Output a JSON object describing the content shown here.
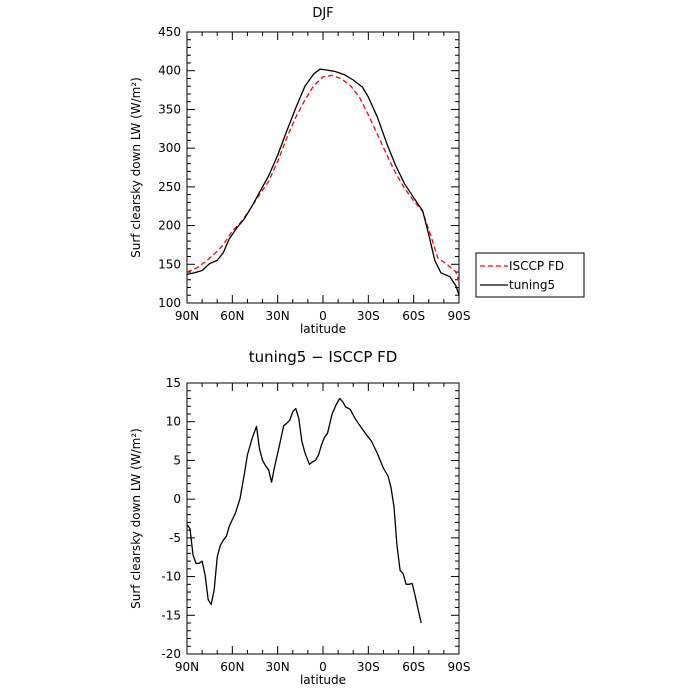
{
  "chart_data": [
    {
      "type": "line",
      "title": "DJF",
      "xlabel": "latitude",
      "ylabel": "Surf clearsky down LW (W/m²)",
      "xlim": [
        90,
        -90
      ],
      "ylim": [
        100,
        450
      ],
      "x_ticks": [
        {
          "value": 90,
          "label": "90N"
        },
        {
          "value": 60,
          "label": "60N"
        },
        {
          "value": 30,
          "label": "30N"
        },
        {
          "value": 0,
          "label": "0"
        },
        {
          "value": -30,
          "label": "30S"
        },
        {
          "value": -60,
          "label": "60S"
        },
        {
          "value": -90,
          "label": "90S"
        }
      ],
      "y_ticks": [
        100,
        150,
        200,
        250,
        300,
        350,
        400,
        450
      ],
      "legend_position": "right",
      "series": [
        {
          "name": "ISCCP FD",
          "color": "#ff0000",
          "dash": "dashed",
          "points": [
            [
              90,
              140
            ],
            [
              84,
              145
            ],
            [
              78,
              153
            ],
            [
              72,
              163
            ],
            [
              66,
              175
            ],
            [
              60,
              193
            ],
            [
              54,
              205
            ],
            [
              48,
              222
            ],
            [
              42,
              240
            ],
            [
              36,
              257
            ],
            [
              30,
              283
            ],
            [
              24,
              313
            ],
            [
              18,
              340
            ],
            [
              12,
              362
            ],
            [
              6,
              381
            ],
            [
              0,
              392
            ],
            [
              -6,
              394
            ],
            [
              -12,
              390
            ],
            [
              -18,
              381
            ],
            [
              -24,
              366
            ],
            [
              -30,
              343
            ],
            [
              -36,
              318
            ],
            [
              -42,
              292
            ],
            [
              -48,
              268
            ],
            [
              -54,
              248
            ],
            [
              -60,
              232
            ],
            [
              -66,
              218
            ],
            [
              -72,
              183
            ],
            [
              -76,
              158
            ],
            [
              -82,
              150
            ],
            [
              -88,
              140
            ],
            [
              -90,
              128
            ]
          ]
        },
        {
          "name": "tuning5",
          "color": "#000000",
          "dash": "solid",
          "points": [
            [
              90,
              137
            ],
            [
              85,
              139
            ],
            [
              80,
              142
            ],
            [
              75,
              151
            ],
            [
              70,
              155
            ],
            [
              66,
              165
            ],
            [
              62,
              183
            ],
            [
              57,
              197
            ],
            [
              52,
              209
            ],
            [
              47,
              225
            ],
            [
              42,
              243
            ],
            [
              36,
              264
            ],
            [
              30,
              291
            ],
            [
              24,
              322
            ],
            [
              18,
              352
            ],
            [
              12,
              380
            ],
            [
              6,
              396
            ],
            [
              2,
              402
            ],
            [
              -2,
              401
            ],
            [
              -8,
              399
            ],
            [
              -14,
              395
            ],
            [
              -20,
              388
            ],
            [
              -26,
              379
            ],
            [
              -30,
              366
            ],
            [
              -36,
              340
            ],
            [
              -42,
              307
            ],
            [
              -48,
              278
            ],
            [
              -54,
              254
            ],
            [
              -60,
              236
            ],
            [
              -66,
              219
            ],
            [
              -70,
              188
            ],
            [
              -74,
              155
            ],
            [
              -78,
              139
            ],
            [
              -84,
              134
            ],
            [
              -88,
              122
            ],
            [
              -90,
              110
            ]
          ]
        }
      ]
    },
    {
      "type": "line",
      "title": "tuning5 − ISCCP FD",
      "xlabel": "latitude",
      "ylabel": "Surf clearsky down LW (W/m²)",
      "xlim": [
        90,
        -90
      ],
      "ylim": [
        -20,
        15
      ],
      "x_ticks": [
        {
          "value": 90,
          "label": "90N"
        },
        {
          "value": 60,
          "label": "60N"
        },
        {
          "value": 30,
          "label": "30N"
        },
        {
          "value": 0,
          "label": "0"
        },
        {
          "value": -30,
          "label": "30S"
        },
        {
          "value": -60,
          "label": "60S"
        },
        {
          "value": -90,
          "label": "90S"
        }
      ],
      "y_ticks": [
        -20,
        -15,
        -10,
        -5,
        0,
        5,
        10,
        15
      ],
      "series": [
        {
          "color": "#000000",
          "dash": "solid",
          "points": [
            [
              90,
              -3.3
            ],
            [
              88,
              -3.8
            ],
            [
              86,
              -7.2
            ],
            [
              84,
              -8.3
            ],
            [
              82,
              -8.3
            ],
            [
              80,
              -8.0
            ],
            [
              78,
              -9.8
            ],
            [
              76,
              -13.0
            ],
            [
              74,
              -13.6
            ],
            [
              72,
              -11.7
            ],
            [
              70,
              -7.5
            ],
            [
              68,
              -6.0
            ],
            [
              66,
              -5.3
            ],
            [
              64,
              -4.8
            ],
            [
              62,
              -3.5
            ],
            [
              58,
              -1.8
            ],
            [
              55,
              0.0
            ],
            [
              52,
              3.3
            ],
            [
              50,
              5.7
            ],
            [
              47,
              7.8
            ],
            [
              44,
              9.4
            ],
            [
              42,
              6.5
            ],
            [
              40,
              5.0
            ],
            [
              38,
              4.3
            ],
            [
              36,
              3.8
            ],
            [
              34,
              2.2
            ],
            [
              32,
              4.2
            ],
            [
              29,
              6.8
            ],
            [
              26,
              9.5
            ],
            [
              24,
              9.8
            ],
            [
              22,
              10.2
            ],
            [
              20,
              11.3
            ],
            [
              18,
              11.7
            ],
            [
              16,
              10.4
            ],
            [
              14,
              7.5
            ],
            [
              12,
              6.0
            ],
            [
              9,
              4.5
            ],
            [
              7,
              4.8
            ],
            [
              5,
              5.0
            ],
            [
              3,
              5.7
            ],
            [
              1,
              7.0
            ],
            [
              -1,
              8.0
            ],
            [
              -3,
              8.5
            ],
            [
              -6,
              11.0
            ],
            [
              -9,
              12.3
            ],
            [
              -11,
              13.0
            ],
            [
              -13,
              12.6
            ],
            [
              -15,
              11.9
            ],
            [
              -18,
              11.6
            ],
            [
              -21,
              10.5
            ],
            [
              -24,
              9.6
            ],
            [
              -28,
              8.5
            ],
            [
              -32,
              7.5
            ],
            [
              -36,
              5.9
            ],
            [
              -40,
              4.0
            ],
            [
              -43,
              3.0
            ],
            [
              -45,
              1.5
            ],
            [
              -47,
              -1.0
            ],
            [
              -49,
              -6.0
            ],
            [
              -51,
              -9.2
            ],
            [
              -53,
              -9.6
            ],
            [
              -55,
              -11.0
            ],
            [
              -57,
              -11.0
            ],
            [
              -59,
              -10.9
            ],
            [
              -61,
              -12.5
            ],
            [
              -63,
              -14.3
            ],
            [
              -65,
              -16.0
            ]
          ]
        }
      ]
    }
  ],
  "legend": {
    "entries": [
      {
        "label": "ISCCP FD",
        "color": "#ff0000",
        "dash": "dashed"
      },
      {
        "label": "tuning5",
        "color": "#000000",
        "dash": "solid"
      }
    ]
  }
}
